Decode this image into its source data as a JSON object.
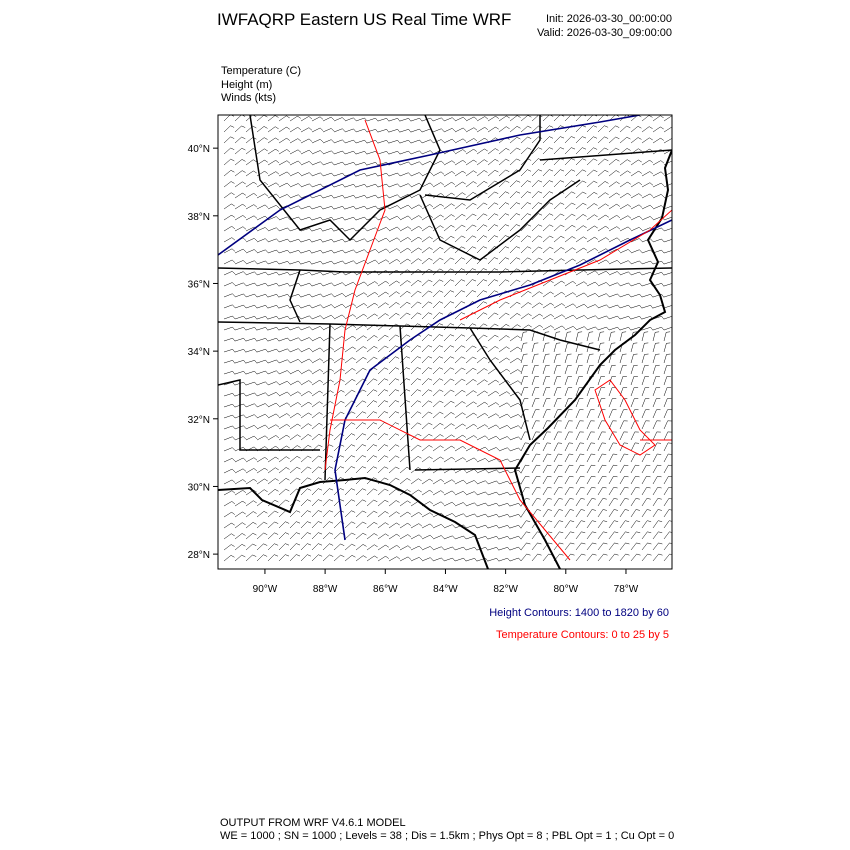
{
  "header": {
    "title": "IWFAQRP Eastern US Real Time WRF",
    "init": "Init: 2026-03-30_00:00:00",
    "valid": "Valid: 2026-03-30_09:00:00"
  },
  "fields": [
    "Temperature   (C)",
    "Height   (m)",
    "Winds   (kts)"
  ],
  "map": {
    "xlim": [
      -91.56,
      -76.47
    ],
    "ylim": [
      27.56,
      40.98
    ],
    "xticks": [
      {
        "value": -90,
        "label": "90°W"
      },
      {
        "value": -88,
        "label": "88°W"
      },
      {
        "value": -86,
        "label": "86°W"
      },
      {
        "value": -84,
        "label": "84°W"
      },
      {
        "value": -82,
        "label": "82°W"
      },
      {
        "value": -80,
        "label": "80°W"
      },
      {
        "value": -78,
        "label": "78°W"
      }
    ],
    "yticks": [
      {
        "value": 40,
        "label": "40°N"
      },
      {
        "value": 38,
        "label": "38°N"
      },
      {
        "value": 36,
        "label": "36°N"
      },
      {
        "value": 34,
        "label": "34°N"
      },
      {
        "value": 32,
        "label": "32°N"
      },
      {
        "value": 30,
        "label": "30°N"
      },
      {
        "value": 28,
        "label": "28°N"
      }
    ]
  },
  "legend": {
    "height": "Height Contours: 1400 to 1820 by 60",
    "temperature": "Temperature Contours: 0 to 25 by 5"
  },
  "footer": [
    "OUTPUT FROM WRF V4.6.1 MODEL",
    "WE = 1000 ; SN = 1000 ; Levels = 38 ; Dis = 1.5km ; Phys Opt = 8 ; PBL Opt = 1 ; Cu Opt = 0"
  ]
}
